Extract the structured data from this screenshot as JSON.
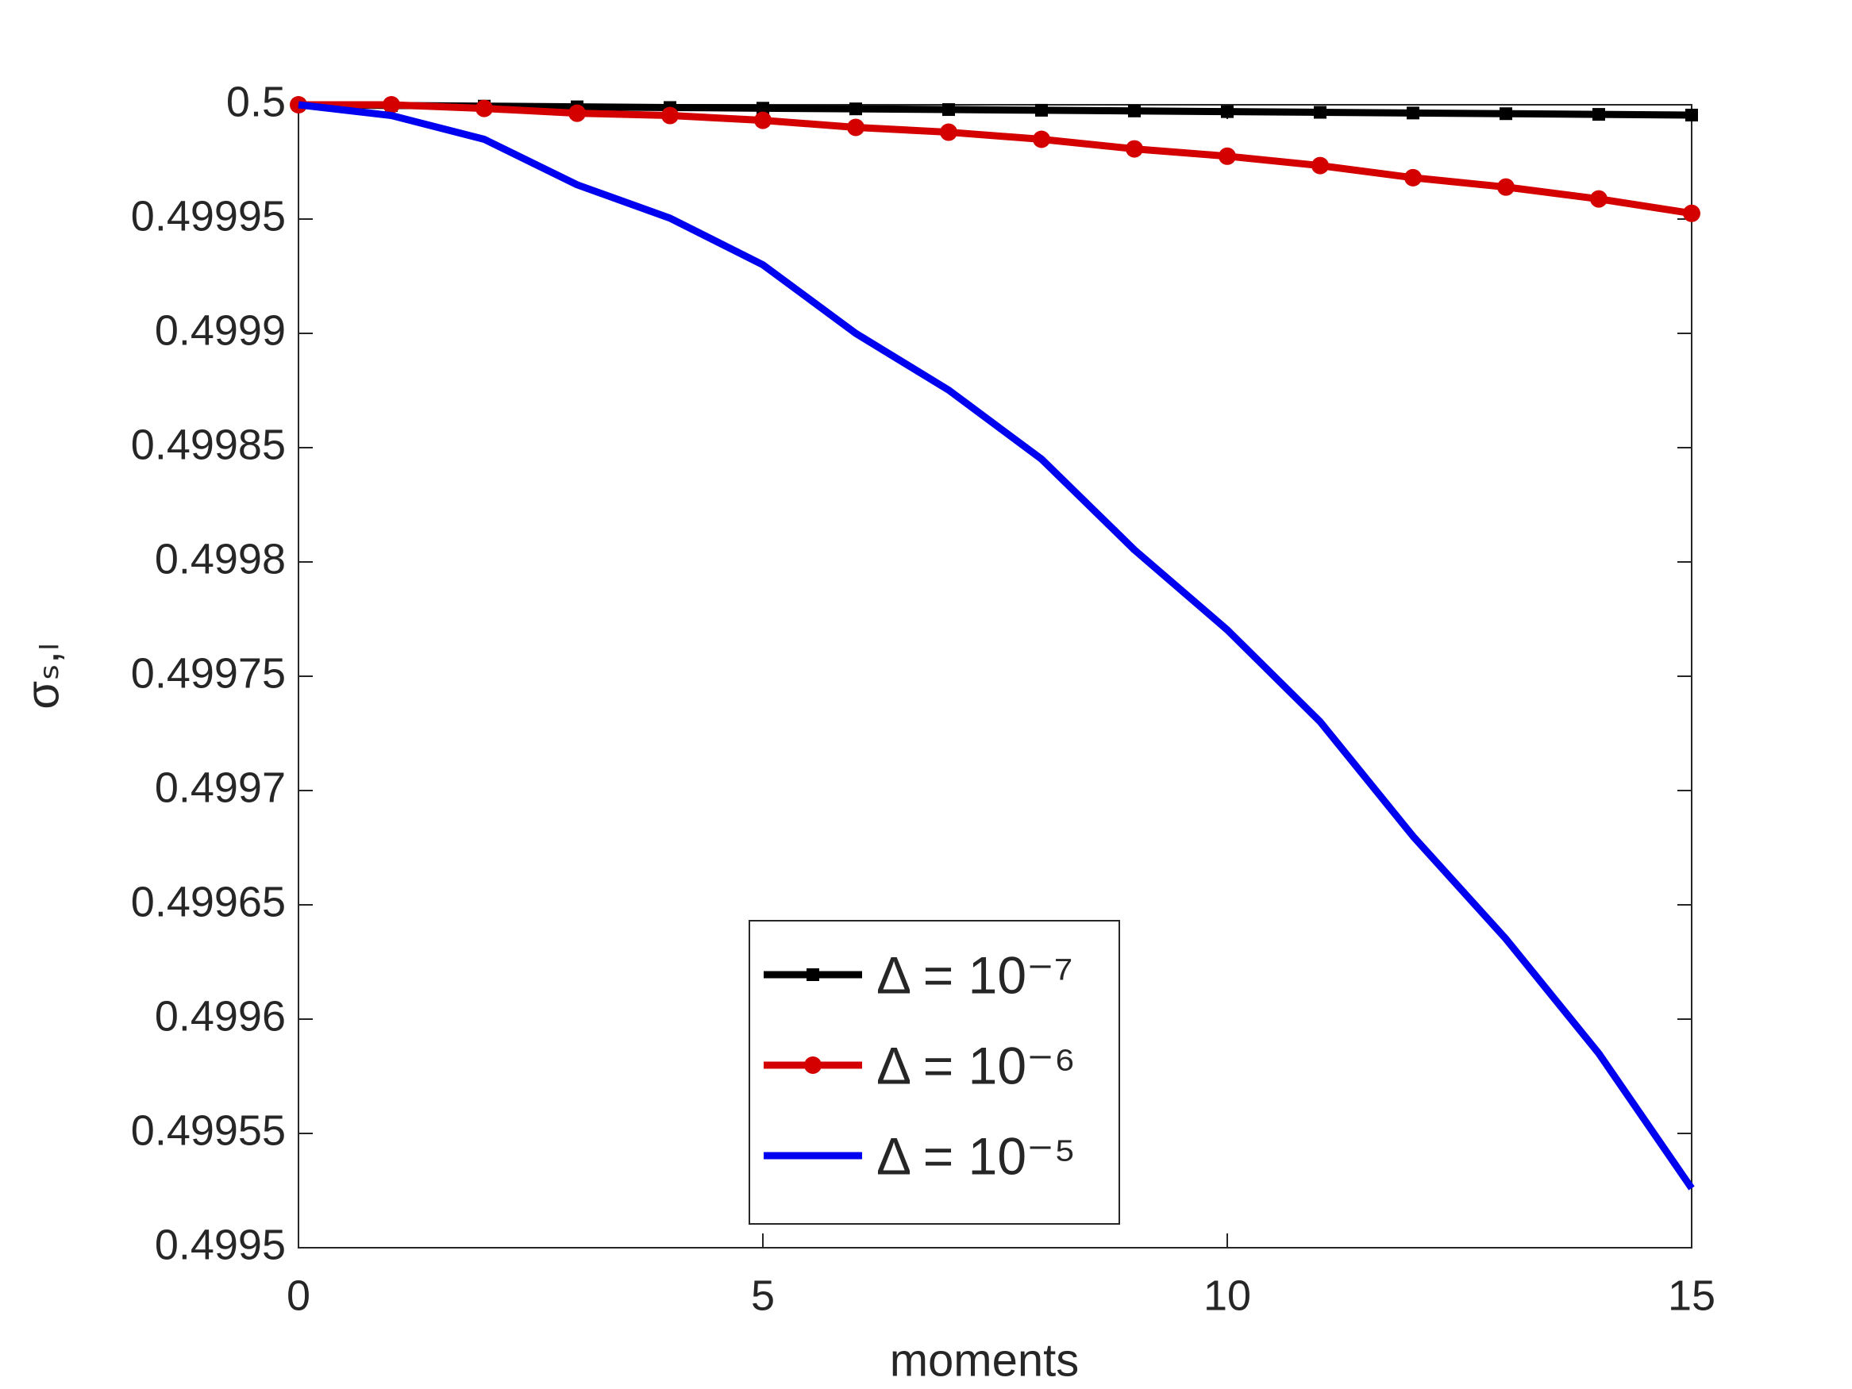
{
  "chart_data": {
    "type": "line",
    "x_label": "moments",
    "y_label": "σₛ,ₗ",
    "x": [
      0,
      1,
      2,
      3,
      4,
      5,
      6,
      7,
      8,
      9,
      10,
      11,
      12,
      13,
      14,
      15
    ],
    "xlim": [
      0,
      15
    ],
    "xticks": [
      0,
      5,
      10,
      15
    ],
    "ylim": [
      0.4995,
      0.5
    ],
    "yticks": [
      0.4995,
      0.49955,
      0.4996,
      0.49965,
      0.4997,
      0.49975,
      0.4998,
      0.49985,
      0.4999,
      0.49995,
      0.5
    ],
    "grid": false,
    "legend": "lower center",
    "series": [
      {
        "name": "Δ = 10⁻⁷",
        "color": "#000000",
        "marker": "square",
        "values": [
          0.5,
          0.4999997,
          0.4999994,
          0.4999991,
          0.4999988,
          0.4999985,
          0.4999982,
          0.4999979,
          0.4999976,
          0.4999973,
          0.499997,
          0.4999967,
          0.4999964,
          0.4999961,
          0.4999958,
          0.4999955
        ]
      },
      {
        "name": "Δ = 10⁻⁶",
        "color": "#d40000",
        "marker": "circle",
        "values": [
          0.5,
          0.5,
          0.4999984,
          0.4999963,
          0.4999953,
          0.4999932,
          0.4999901,
          0.499988,
          0.4999849,
          0.4999807,
          0.4999775,
          0.4999734,
          0.4999681,
          0.499964,
          0.4999588,
          0.4999525
        ]
      },
      {
        "name": "Δ = 10⁻⁵",
        "color": "#0000f0",
        "marker": "none",
        "values": [
          0.5,
          0.4999953,
          0.4999849,
          0.499965,
          0.4999504,
          0.49993,
          0.4999,
          0.4998752,
          0.499845,
          0.4998053,
          0.4997703,
          0.4997301,
          0.49968,
          0.4996351,
          0.499585,
          0.499526
        ]
      }
    ]
  }
}
